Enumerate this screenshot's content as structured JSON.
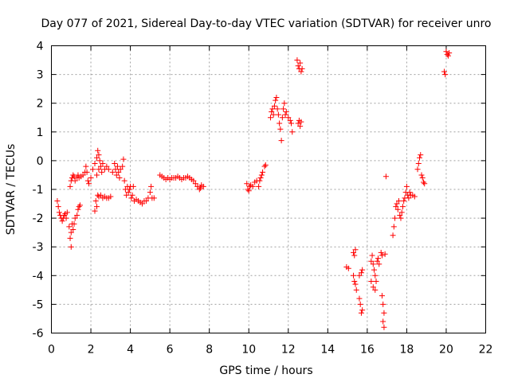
{
  "chart_data": {
    "type": "scatter",
    "title": "Day 077 of 2021, Sidereal Day-to-day VTEC variation (SDTVAR) for receiver unro",
    "xlabel": "GPS time / hours",
    "ylabel": "SDTVAR / TECUs",
    "xlim": [
      0,
      22
    ],
    "ylim": [
      -6,
      4
    ],
    "xticks": [
      "0",
      "2",
      "4",
      "6",
      "8",
      "10",
      "12",
      "14",
      "16",
      "18",
      "20",
      "22"
    ],
    "yticks": [
      "4",
      "3",
      "2",
      "1",
      "0",
      "-1",
      "-2",
      "-3",
      "-4",
      "-5",
      "-6"
    ],
    "grid": true,
    "marker": "+",
    "color": "#ff0000",
    "series": [
      {
        "name": "SDTVAR",
        "points": [
          [
            0.3,
            -1.4
          ],
          [
            0.35,
            -1.6
          ],
          [
            0.4,
            -1.8
          ],
          [
            0.45,
            -1.9
          ],
          [
            0.5,
            -2.0
          ],
          [
            0.55,
            -2.1
          ],
          [
            0.6,
            -2.0
          ],
          [
            0.65,
            -1.9
          ],
          [
            0.7,
            -1.85
          ],
          [
            0.75,
            -2.0
          ],
          [
            0.8,
            -1.8
          ],
          [
            0.9,
            -2.3
          ],
          [
            0.95,
            -2.7
          ],
          [
            1.0,
            -3.0
          ],
          [
            1.0,
            -2.5
          ],
          [
            1.05,
            -2.2
          ],
          [
            1.1,
            -2.4
          ],
          [
            1.15,
            -2.2
          ],
          [
            1.2,
            -2.0
          ],
          [
            1.3,
            -1.9
          ],
          [
            1.35,
            -1.7
          ],
          [
            1.4,
            -1.6
          ],
          [
            1.45,
            -1.55
          ],
          [
            0.95,
            -0.9
          ],
          [
            1.0,
            -0.7
          ],
          [
            1.05,
            -0.6
          ],
          [
            1.1,
            -0.5
          ],
          [
            1.15,
            -0.55
          ],
          [
            1.2,
            -0.7
          ],
          [
            1.3,
            -0.6
          ],
          [
            1.35,
            -0.5
          ],
          [
            1.4,
            -0.6
          ],
          [
            1.5,
            -0.55
          ],
          [
            1.6,
            -0.5
          ],
          [
            1.7,
            -0.4
          ],
          [
            1.75,
            -0.2
          ],
          [
            1.8,
            -0.4
          ],
          [
            1.85,
            -0.7
          ],
          [
            1.9,
            -0.8
          ],
          [
            2.0,
            -0.6
          ],
          [
            2.1,
            -0.3
          ],
          [
            2.2,
            -0.1
          ],
          [
            2.3,
            0.1
          ],
          [
            2.35,
            0.35
          ],
          [
            2.4,
            0.2
          ],
          [
            2.45,
            0.0
          ],
          [
            2.5,
            -0.2
          ],
          [
            2.55,
            -0.4
          ],
          [
            2.6,
            -0.1
          ],
          [
            2.7,
            -0.3
          ],
          [
            2.8,
            -0.2
          ],
          [
            2.9,
            -0.3
          ],
          [
            2.3,
            -0.5
          ],
          [
            2.4,
            -0.3
          ],
          [
            2.25,
            -1.4
          ],
          [
            2.3,
            -1.6
          ],
          [
            2.2,
            -1.75
          ],
          [
            2.35,
            -1.2
          ],
          [
            2.4,
            -1.25
          ],
          [
            2.5,
            -1.2
          ],
          [
            2.6,
            -1.3
          ],
          [
            2.7,
            -1.25
          ],
          [
            2.8,
            -1.3
          ],
          [
            2.9,
            -1.3
          ],
          [
            3.0,
            -1.25
          ],
          [
            3.1,
            -0.4
          ],
          [
            3.2,
            -0.1
          ],
          [
            3.25,
            -0.3
          ],
          [
            3.3,
            -0.5
          ],
          [
            3.35,
            -0.2
          ],
          [
            3.4,
            -0.4
          ],
          [
            3.45,
            -0.6
          ],
          [
            3.5,
            -0.3
          ],
          [
            3.6,
            -0.2
          ],
          [
            3.65,
            0.05
          ],
          [
            3.7,
            -0.7
          ],
          [
            3.75,
            -1.0
          ],
          [
            3.8,
            -1.2
          ],
          [
            3.85,
            -0.9
          ],
          [
            3.9,
            -1.1
          ],
          [
            3.95,
            -1.0
          ],
          [
            4.0,
            -0.9
          ],
          [
            4.05,
            -1.3
          ],
          [
            4.1,
            -1.2
          ],
          [
            4.15,
            -0.9
          ],
          [
            4.2,
            -1.4
          ],
          [
            4.3,
            -1.35
          ],
          [
            4.4,
            -1.4
          ],
          [
            4.5,
            -1.45
          ],
          [
            4.6,
            -1.5
          ],
          [
            4.7,
            -1.4
          ],
          [
            4.8,
            -1.4
          ],
          [
            4.9,
            -1.3
          ],
          [
            5.0,
            -1.1
          ],
          [
            5.05,
            -0.9
          ],
          [
            5.1,
            -1.3
          ],
          [
            5.2,
            -1.3
          ],
          [
            5.5,
            -0.5
          ],
          [
            5.6,
            -0.55
          ],
          [
            5.7,
            -0.6
          ],
          [
            5.8,
            -0.65
          ],
          [
            5.9,
            -0.6
          ],
          [
            6.0,
            -0.65
          ],
          [
            6.1,
            -0.6
          ],
          [
            6.2,
            -0.6
          ],
          [
            6.3,
            -0.6
          ],
          [
            6.4,
            -0.55
          ],
          [
            6.5,
            -0.6
          ],
          [
            6.6,
            -0.65
          ],
          [
            6.7,
            -0.6
          ],
          [
            6.8,
            -0.6
          ],
          [
            6.9,
            -0.55
          ],
          [
            7.0,
            -0.6
          ],
          [
            7.1,
            -0.65
          ],
          [
            7.2,
            -0.7
          ],
          [
            7.3,
            -0.8
          ],
          [
            7.4,
            -0.9
          ],
          [
            7.5,
            -1.0
          ],
          [
            7.55,
            -0.95
          ],
          [
            7.6,
            -0.85
          ],
          [
            7.7,
            -0.9
          ],
          [
            9.9,
            -0.8
          ],
          [
            9.95,
            -1.0
          ],
          [
            10.0,
            -1.05
          ],
          [
            10.05,
            -0.9
          ],
          [
            10.1,
            -0.85
          ],
          [
            10.2,
            -0.9
          ],
          [
            10.3,
            -0.75
          ],
          [
            10.4,
            -0.7
          ],
          [
            10.5,
            -0.9
          ],
          [
            10.55,
            -0.7
          ],
          [
            10.6,
            -0.6
          ],
          [
            10.65,
            -0.5
          ],
          [
            10.7,
            -0.4
          ],
          [
            10.8,
            -0.2
          ],
          [
            10.85,
            -0.15
          ],
          [
            11.1,
            1.5
          ],
          [
            11.15,
            1.7
          ],
          [
            11.2,
            1.8
          ],
          [
            11.25,
            1.6
          ],
          [
            11.3,
            1.9
          ],
          [
            11.35,
            2.1
          ],
          [
            11.4,
            2.2
          ],
          [
            11.45,
            1.8
          ],
          [
            11.5,
            1.6
          ],
          [
            11.55,
            1.3
          ],
          [
            11.6,
            1.1
          ],
          [
            11.65,
            0.7
          ],
          [
            11.7,
            1.5
          ],
          [
            11.75,
            1.8
          ],
          [
            11.8,
            2.0
          ],
          [
            11.85,
            1.6
          ],
          [
            11.9,
            1.7
          ],
          [
            12.0,
            1.5
          ],
          [
            12.1,
            1.4
          ],
          [
            12.15,
            1.3
          ],
          [
            12.2,
            1.0
          ],
          [
            12.45,
            3.5
          ],
          [
            12.5,
            3.3
          ],
          [
            12.55,
            3.2
          ],
          [
            12.6,
            3.4
          ],
          [
            12.65,
            3.1
          ],
          [
            12.7,
            3.2
          ],
          [
            12.5,
            1.3
          ],
          [
            12.55,
            1.4
          ],
          [
            12.6,
            1.2
          ],
          [
            12.65,
            1.35
          ],
          [
            14.95,
            -3.7
          ],
          [
            15.05,
            -3.75
          ],
          [
            15.3,
            -3.2
          ],
          [
            15.35,
            -3.3
          ],
          [
            15.4,
            -3.1
          ],
          [
            15.3,
            -4.0
          ],
          [
            15.35,
            -4.2
          ],
          [
            15.4,
            -4.3
          ],
          [
            15.45,
            -4.5
          ],
          [
            15.6,
            -4.0
          ],
          [
            15.7,
            -3.9
          ],
          [
            15.75,
            -3.8
          ],
          [
            15.6,
            -4.8
          ],
          [
            15.65,
            -5.0
          ],
          [
            15.7,
            -5.3
          ],
          [
            15.75,
            -5.2
          ],
          [
            16.2,
            -3.5
          ],
          [
            16.25,
            -3.3
          ],
          [
            16.3,
            -3.6
          ],
          [
            16.35,
            -3.8
          ],
          [
            16.4,
            -4.0
          ],
          [
            16.45,
            -4.2
          ],
          [
            16.5,
            -3.5
          ],
          [
            16.55,
            -3.4
          ],
          [
            16.6,
            -3.6
          ],
          [
            16.2,
            -4.2
          ],
          [
            16.3,
            -4.4
          ],
          [
            16.4,
            -4.5
          ],
          [
            16.7,
            -3.2
          ],
          [
            16.75,
            -3.3
          ],
          [
            16.9,
            -3.25
          ],
          [
            16.75,
            -4.7
          ],
          [
            16.8,
            -5.0
          ],
          [
            16.85,
            -5.3
          ],
          [
            16.8,
            -5.6
          ],
          [
            16.85,
            -5.8
          ],
          [
            16.95,
            -0.55
          ],
          [
            17.3,
            -2.6
          ],
          [
            17.35,
            -2.3
          ],
          [
            17.4,
            -2.0
          ],
          [
            17.45,
            -1.6
          ],
          [
            17.5,
            -1.5
          ],
          [
            17.55,
            -1.7
          ],
          [
            17.6,
            -1.4
          ],
          [
            17.65,
            -1.9
          ],
          [
            17.7,
            -2.0
          ],
          [
            17.75,
            -1.8
          ],
          [
            17.8,
            -1.6
          ],
          [
            17.85,
            -1.4
          ],
          [
            17.9,
            -1.3
          ],
          [
            17.95,
            -1.1
          ],
          [
            18.0,
            -0.9
          ],
          [
            18.05,
            -1.2
          ],
          [
            18.1,
            -1.3
          ],
          [
            18.15,
            -1.1
          ],
          [
            18.2,
            -1.2
          ],
          [
            18.3,
            -1.2
          ],
          [
            18.4,
            -1.25
          ],
          [
            18.55,
            -0.3
          ],
          [
            18.6,
            -0.1
          ],
          [
            18.65,
            0.1
          ],
          [
            18.7,
            0.2
          ],
          [
            18.75,
            -0.5
          ],
          [
            18.8,
            -0.6
          ],
          [
            18.85,
            -0.75
          ],
          [
            18.9,
            -0.8
          ],
          [
            19.9,
            3.1
          ],
          [
            19.95,
            3.0
          ],
          [
            20.0,
            3.8
          ],
          [
            20.05,
            3.7
          ],
          [
            20.1,
            3.65
          ],
          [
            20.15,
            3.75
          ]
        ]
      }
    ]
  }
}
